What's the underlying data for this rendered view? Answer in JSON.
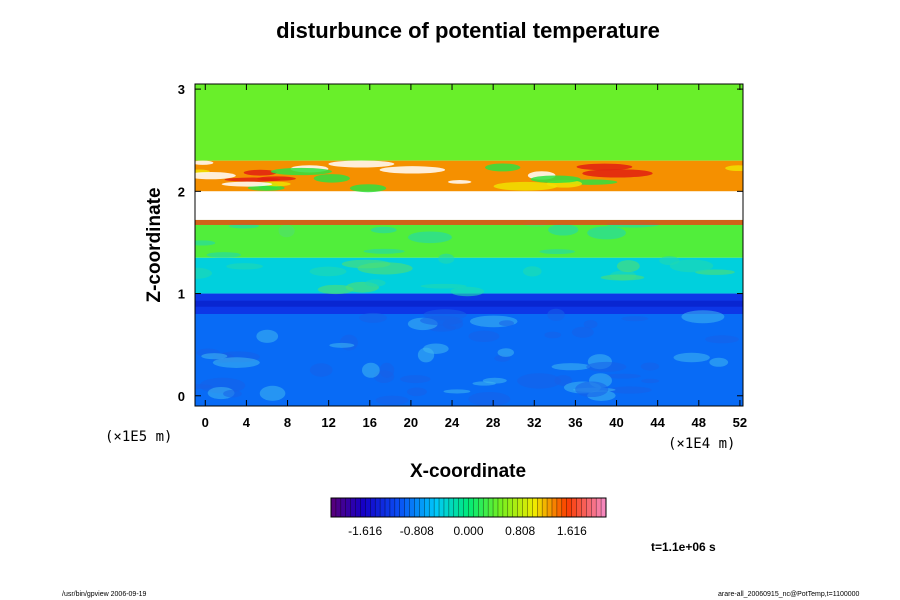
{
  "chart_data": {
    "type": "heatmap",
    "title": "disturbunce of potential temperature",
    "xlabel": "X-coordinate",
    "ylabel": "Z-coordinate",
    "x_unit": "(×1E4 m)",
    "y_unit": "(×1E5 m)",
    "xlim": [
      -1,
      52.3
    ],
    "ylim": [
      -0.1,
      3.05
    ],
    "x_ticks": [
      "0",
      "4",
      "8",
      "12",
      "16",
      "20",
      "24",
      "28",
      "32",
      "36",
      "40",
      "44",
      "48",
      "52"
    ],
    "y_ticks": [
      "0",
      "1",
      "2",
      "3"
    ],
    "colorbar": {
      "range": [
        -2.15,
        2.15
      ],
      "tick_labels": [
        "-1.616",
        "-0.808",
        "0.000",
        "0.808",
        "1.616"
      ],
      "tick_values": [
        -1.616,
        -0.808,
        0.0,
        0.808,
        1.616
      ]
    },
    "missing_band_z": [
      1.72,
      2.0
    ],
    "layers": [
      {
        "z": [
          2.3,
          3.05
        ],
        "value": 0.45
      },
      {
        "z": [
          2.0,
          2.3
        ],
        "value": 1.3
      },
      {
        "z": [
          1.72,
          2.0
        ],
        "value": null
      },
      {
        "z": [
          1.35,
          1.72
        ],
        "value": 0.35
      },
      {
        "z": [
          1.0,
          1.35
        ],
        "value": -0.4
      },
      {
        "z": [
          0.8,
          1.0
        ],
        "value": -1.25
      },
      {
        "z": [
          -0.1,
          0.8
        ],
        "value": -0.95
      }
    ],
    "time_label": "t=1.1e+06 s"
  },
  "footer": {
    "left_text": "/usr/bin/gpview 2006-09-19",
    "right_text": "arare-all_20060915_nc@PotTemp,t=1100000"
  }
}
